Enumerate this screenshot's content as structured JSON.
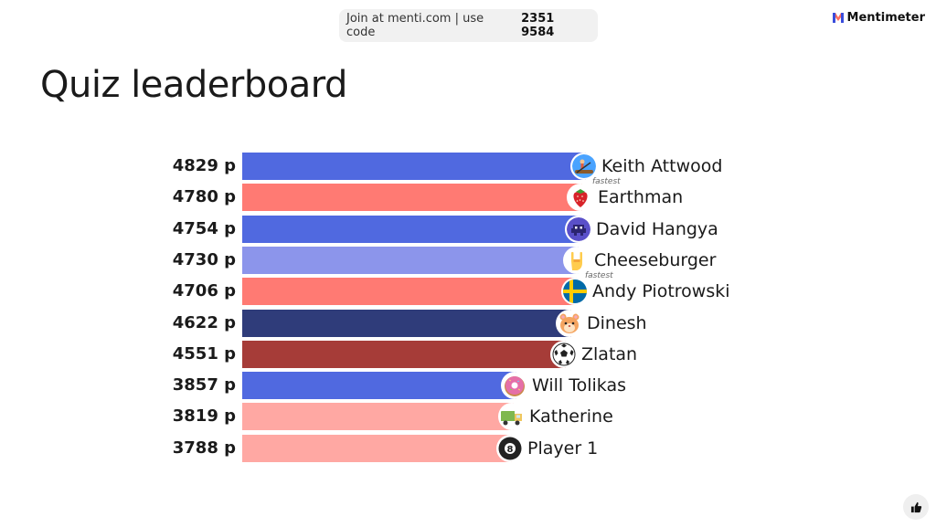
{
  "join": {
    "text": "Join at menti.com | use code",
    "code": "2351 9584"
  },
  "brand": {
    "name": "Mentimeter"
  },
  "title": "Quiz leaderboard",
  "leaderboard": [
    {
      "score": "4829 p",
      "points": 4829,
      "name": "Keith Attwood",
      "color": "#5069e0",
      "icon": "rowing-icon",
      "tag": "fastest"
    },
    {
      "score": "4780 p",
      "points": 4780,
      "name": "Earthman",
      "color": "#ff7a73",
      "icon": "strawberry-icon"
    },
    {
      "score": "4754 p",
      "points": 4754,
      "name": "David Hangya",
      "color": "#5069e0",
      "icon": "space-invader-icon"
    },
    {
      "score": "4730 p",
      "points": 4730,
      "name": "Cheeseburger",
      "color": "#8c95eb",
      "icon": "rock-hand-icon",
      "tag": "fastest"
    },
    {
      "score": "4706 p",
      "points": 4706,
      "name": "Andy Piotrowski",
      "color": "#ff7a73",
      "icon": "sweden-flag-icon"
    },
    {
      "score": "4622 p",
      "points": 4622,
      "name": "Dinesh",
      "color": "#2f3c7a",
      "icon": "hamster-icon"
    },
    {
      "score": "4551 p",
      "points": 4551,
      "name": "Zlatan",
      "color": "#a63c38",
      "icon": "soccer-ball-icon"
    },
    {
      "score": "3857 p",
      "points": 3857,
      "name": "Will Tolikas",
      "color": "#5069e0",
      "icon": "donut-icon"
    },
    {
      "score": "3819 p",
      "points": 3819,
      "name": "Katherine",
      "color": "#ffa8a3",
      "icon": "truck-icon"
    },
    {
      "score": "3788 p",
      "points": 3788,
      "name": "Player 1",
      "color": "#ffa8a3",
      "icon": "eight-ball-icon"
    }
  ],
  "like": {
    "icon": "thumbs-up-icon"
  }
}
